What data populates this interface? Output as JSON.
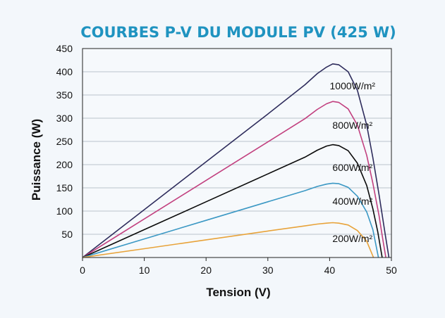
{
  "chart_data": {
    "type": "line",
    "title": "COURBES P-V DU MODULE PV (425 W)",
    "xlabel": "Tension (V)",
    "ylabel": "Puissance (W)",
    "xlim": [
      0,
      50
    ],
    "ylim": [
      0,
      450
    ],
    "xticks": [
      0,
      10,
      20,
      30,
      40,
      50
    ],
    "yticks": [
      50,
      100,
      150,
      200,
      250,
      300,
      350,
      400,
      450
    ],
    "grid": "horizontal",
    "series": [
      {
        "name": "1000W/m²",
        "color": "#2e2c5c",
        "x": [
          0,
          10,
          20,
          30,
          36,
          38,
          39.5,
          40.5,
          41.5,
          43,
          44.5,
          46,
          47,
          48,
          49,
          49.6
        ],
        "y": [
          0,
          103,
          206,
          309,
          372,
          396,
          410,
          417,
          415,
          400,
          360,
          285,
          215,
          135,
          50,
          0
        ]
      },
      {
        "name": "800W/m²",
        "color": "#c2407f",
        "x": [
          0,
          10,
          20,
          30,
          36,
          38,
          39.5,
          40.5,
          41.5,
          43,
          44.5,
          46,
          47,
          48,
          48.6,
          49.1
        ],
        "y": [
          0,
          83,
          166,
          249,
          299,
          319,
          331,
          336,
          334,
          320,
          285,
          220,
          160,
          90,
          40,
          0
        ]
      },
      {
        "name": "600W/m²",
        "color": "#0a0a0a",
        "x": [
          0,
          10,
          20,
          30,
          36,
          38,
          39.5,
          40.5,
          41.5,
          43,
          44.5,
          46,
          47,
          47.8,
          48.5
        ],
        "y": [
          0,
          60,
          120,
          180,
          216,
          231,
          240,
          243,
          241,
          230,
          203,
          155,
          105,
          55,
          0
        ]
      },
      {
        "name": "400W/m²",
        "color": "#3b98c4",
        "x": [
          0,
          10,
          20,
          30,
          36,
          38,
          39.5,
          40.5,
          41.5,
          43,
          44.5,
          46,
          47,
          47.9
        ],
        "y": [
          0,
          40,
          80,
          120,
          144,
          153,
          158,
          160,
          159,
          151,
          132,
          98,
          60,
          0
        ]
      },
      {
        "name": "200W/m²",
        "color": "#e8a33a",
        "x": [
          0,
          10,
          20,
          30,
          36,
          38,
          39.5,
          40.5,
          41.5,
          43,
          44.5,
          46,
          47.1
        ],
        "y": [
          0,
          19,
          38,
          57,
          68,
          72,
          74,
          75,
          74,
          70,
          58,
          35,
          0
        ]
      }
    ],
    "labels": [
      {
        "text": "1000W/m²",
        "x": 43.7,
        "y": 362
      },
      {
        "text": "800W/m²",
        "x": 43.7,
        "y": 277
      },
      {
        "text": "600W/m²",
        "x": 43.7,
        "y": 186
      },
      {
        "text": "400W/m²",
        "x": 43.7,
        "y": 114
      },
      {
        "text": "200W/m²",
        "x": 43.7,
        "y": 33
      }
    ]
  },
  "colors": {
    "title": "#1f93c0",
    "grid": "#b9c3cc",
    "axis": "#222222",
    "background": "#f3f7fb"
  }
}
